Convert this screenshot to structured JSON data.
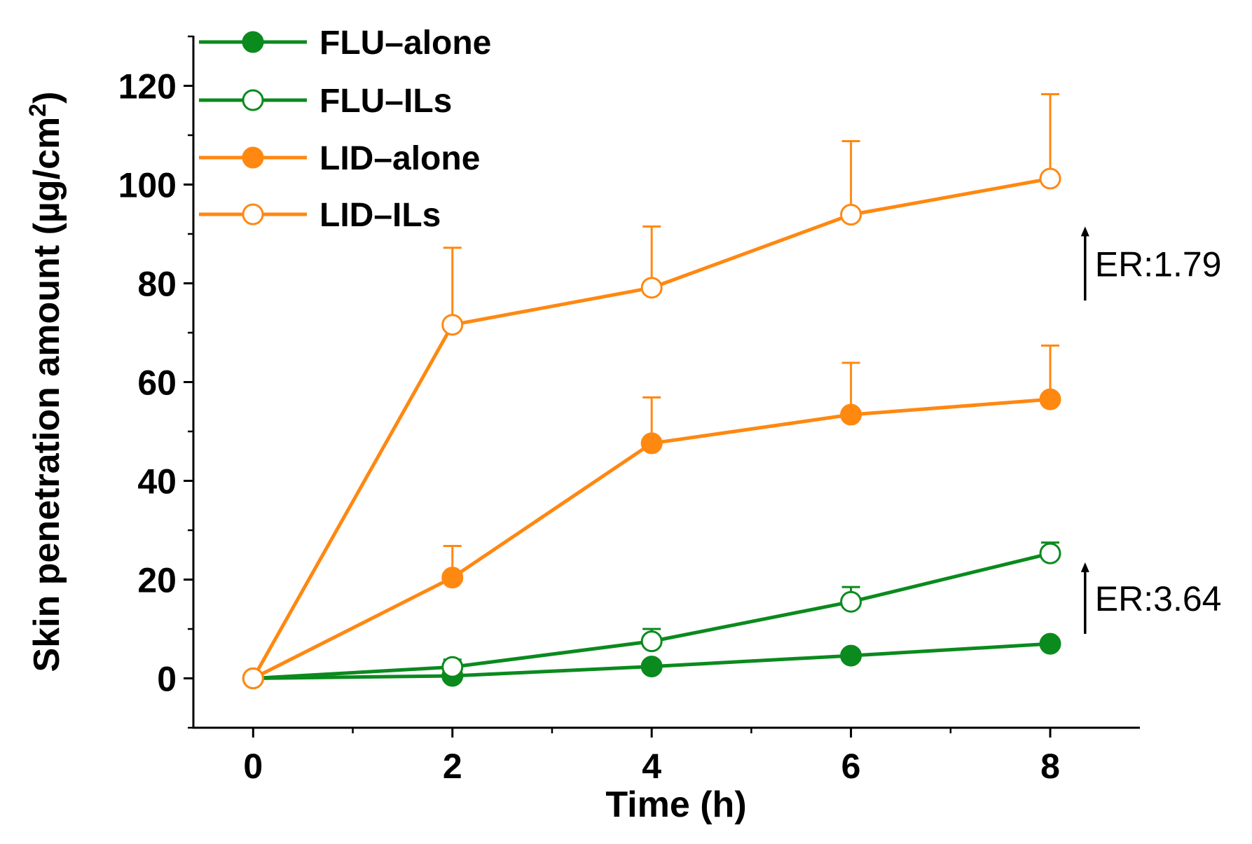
{
  "chart_data": {
    "type": "line",
    "xlabel": "Time (h)",
    "ylabel": "Skin penetration amount (µg/cm²)",
    "ylabel_main": "Skin penetration amount (µg/cm",
    "ylabel_sup": "2",
    "ylabel_tail": ")",
    "xlim": [
      -0.6,
      8.9
    ],
    "ylim": [
      -10,
      130
    ],
    "x_ticks": [
      0,
      2,
      4,
      6,
      8
    ],
    "y_ticks": [
      0,
      20,
      40,
      60,
      80,
      100,
      120
    ],
    "x_tick_labels": [
      "0",
      "2",
      "4",
      "6",
      "8"
    ],
    "y_tick_labels": [
      "0",
      "20",
      "40",
      "60",
      "80",
      "100",
      "120"
    ],
    "grid": false,
    "legend_position": "top-left",
    "series": [
      {
        "name": "FLU–alone",
        "color": "#0b8a1e",
        "marker": "filled-circle",
        "x": [
          0,
          2,
          4,
          6,
          8
        ],
        "y": [
          0,
          0.5,
          2.4,
          4.6,
          7.0
        ],
        "error": [
          0,
          0,
          0,
          0,
          0
        ]
      },
      {
        "name": "FLU–ILs",
        "color": "#0b8a1e",
        "marker": "open-circle",
        "x": [
          0,
          2,
          4,
          6,
          8
        ],
        "y": [
          0,
          2.3,
          7.5,
          15.5,
          25.3
        ],
        "error": [
          0,
          1.5,
          2.5,
          3.0,
          2.2
        ]
      },
      {
        "name": "LID–alone",
        "color": "#ff8811",
        "marker": "filled-circle",
        "x": [
          0,
          2,
          4,
          6,
          8
        ],
        "y": [
          0,
          20.4,
          47.6,
          53.4,
          56.5
        ],
        "error": [
          0,
          6.4,
          9.3,
          10.5,
          10.9
        ]
      },
      {
        "name": "LID–ILs",
        "color": "#ff8811",
        "marker": "open-circle",
        "x": [
          0,
          2,
          4,
          6,
          8
        ],
        "y": [
          0,
          71.6,
          79.1,
          93.9,
          101.2
        ],
        "error": [
          0,
          15.6,
          12.4,
          14.9,
          17.1
        ]
      }
    ],
    "annotations": [
      {
        "text": "ER:1.79",
        "x": 8.35,
        "y_from": 76.5,
        "y_to": 91.5
      },
      {
        "text": "ER:3.64",
        "x": 8.35,
        "y_from": 9.0,
        "y_to": 23.5
      }
    ]
  }
}
